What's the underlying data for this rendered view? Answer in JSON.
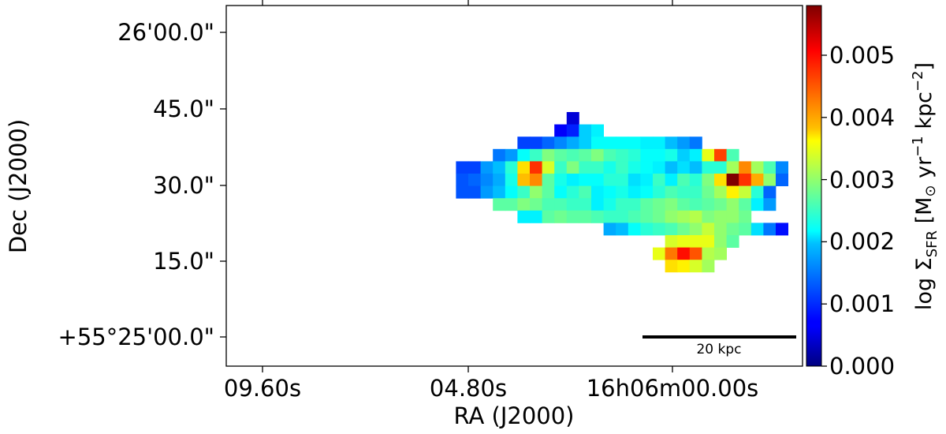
{
  "chart_data": {
    "type": "heatmap",
    "xlabel": "RA (J2000)",
    "ylabel": "Dec (J2000)",
    "x_ticks": [
      "09.60s",
      "04.80s",
      "16h06m00.00s"
    ],
    "y_ticks": [
      "26'00.0\"",
      "45.0\"",
      "30.0\"",
      "15.0\"",
      "+55°25'00.0\""
    ],
    "colorbar": {
      "label": "log Σ_SFR [M⊙ yr⁻¹ kpc⁻²]",
      "label_main": "log Σ",
      "label_sub": "SFR",
      "label_units_open": " [M",
      "label_sun": "⊙",
      "label_yr": " yr",
      "label_exp1": "−1",
      "label_kpc": " kpc",
      "label_exp2": "−2",
      "label_close": "]",
      "range": [
        0.0,
        0.0058
      ],
      "ticks": [
        "0.000",
        "0.001",
        "0.002",
        "0.003",
        "0.004",
        "0.005"
      ],
      "colormap": "jet"
    },
    "scalebar_label": "20 kpc",
    "grid": false,
    "pixel_rows": [
      {
        "row": 0,
        "start": 18,
        "values": [
          0.0005
        ]
      },
      {
        "row": 1,
        "start": 17,
        "values": [
          0.0007,
          0.0009,
          0.0019,
          0.0021
        ]
      },
      {
        "row": 2,
        "start": 14,
        "values": [
          0.0011,
          0.0011,
          0.0013,
          0.0015,
          0.0017,
          0.0019,
          0.0022,
          0.0022,
          0.0022,
          0.0022,
          0.0021,
          0.0021,
          0.0018,
          0.0016,
          0.0014
        ]
      },
      {
        "row": 3,
        "start": 12,
        "values": [
          0.0014,
          0.0016,
          0.0022,
          0.0025,
          0.0029,
          0.0027,
          0.0026,
          0.0027,
          0.0029,
          0.0026,
          0.0025,
          0.0024,
          0.0022,
          0.0022,
          0.0023,
          0.0019,
          0.0021,
          0.0035,
          0.0047,
          0.0026
        ]
      },
      {
        "row": 4,
        "start": 9,
        "values": [
          0.0011,
          0.0011,
          0.0016,
          0.0018,
          0.0024,
          0.0038,
          0.0048,
          0.0034,
          0.0025,
          0.0029,
          0.0025,
          0.0025,
          0.0023,
          0.0025,
          0.0023,
          0.0022,
          0.0021,
          0.0018,
          0.002,
          0.0018,
          0.0024,
          0.0024,
          0.0031,
          0.0043,
          0.0031,
          0.0026,
          0.0015
        ]
      },
      {
        "row": 5,
        "start": 9,
        "values": [
          0.0012,
          0.0013,
          0.0015,
          0.0017,
          0.0023,
          0.004,
          0.0043,
          0.0027,
          0.0023,
          0.0021,
          0.0022,
          0.0022,
          0.0024,
          0.0024,
          0.002,
          0.0021,
          0.0025,
          0.0021,
          0.0026,
          0.0024,
          0.0029,
          0.0038,
          0.0058,
          0.0048,
          0.0041,
          0.003,
          0.0013
        ]
      },
      {
        "row": 6,
        "start": 9,
        "values": [
          0.0012,
          0.0012,
          0.0016,
          0.0018,
          0.0022,
          0.0025,
          0.003,
          0.0027,
          0.0022,
          0.0024,
          0.0026,
          0.0021,
          0.0022,
          0.0023,
          0.0021,
          0.0022,
          0.0024,
          0.0026,
          0.0025,
          0.0025,
          0.0028,
          0.0031,
          0.0037,
          0.0033,
          0.0024,
          0.0013
        ]
      },
      {
        "row": 7,
        "start": 12,
        "values": [
          0.0027,
          0.0027,
          0.0029,
          0.0028,
          0.0026,
          0.0026,
          0.0025,
          0.0025,
          0.0021,
          0.0023,
          0.0025,
          0.0025,
          0.0027,
          0.0028,
          0.0029,
          0.0027,
          0.0026,
          0.0027,
          0.0028,
          0.003,
          0.0027,
          0.0021,
          0.0016
        ]
      },
      {
        "row": 8,
        "start": 14,
        "values": [
          0.0021,
          0.0021,
          0.0027,
          0.0028,
          0.0027,
          0.0027,
          0.0026,
          0.0025,
          0.0025,
          0.0026,
          0.0027,
          0.0028,
          0.003,
          0.0031,
          0.0032,
          0.0029,
          0.003,
          0.003,
          0.0028
        ]
      },
      {
        "row": 9,
        "start": 21,
        "values": [
          0.0017,
          0.0018,
          0.0022,
          0.0024,
          0.0025,
          0.0026,
          0.0028,
          0.003,
          0.0033,
          0.003,
          0.0028,
          0.0027,
          0.002,
          0.0014,
          0.0008
        ]
      },
      {
        "row": 10,
        "start": 26,
        "values": [
          0.0034,
          0.0035,
          0.0035,
          0.0035,
          0.003,
          0.0027
        ]
      },
      {
        "row": 11,
        "start": 25,
        "values": [
          0.0035,
          0.0044,
          0.005,
          0.0046,
          0.0032,
          0.0031
        ]
      },
      {
        "row": 12,
        "start": 26,
        "values": [
          0.0038,
          0.0037,
          0.0034,
          0.0031
        ]
      }
    ]
  }
}
